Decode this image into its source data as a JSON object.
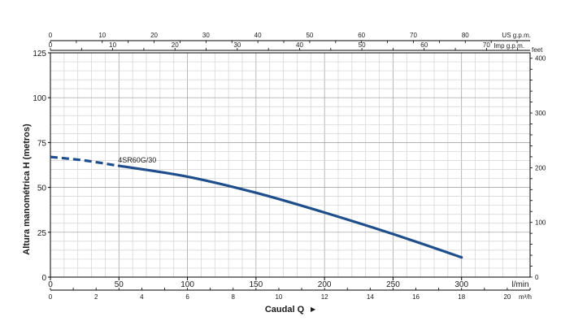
{
  "chart_data": {
    "type": "line",
    "ylabel": "Altura manométrica H (metros)",
    "xlabel": "Caudal Q",
    "ylim": [
      0,
      125
    ],
    "xlim": [
      0,
      350
    ],
    "grid": true,
    "x_unit": "l/min",
    "x_ticks": [
      0,
      50,
      100,
      150,
      200,
      250,
      300
    ],
    "y_ticks": [
      0,
      25,
      50,
      75,
      100,
      125
    ],
    "secondary_axes": {
      "top_us_gpm": {
        "unit": "US g.p.m.",
        "ticks": [
          0,
          10,
          20,
          30,
          40,
          50,
          60,
          70,
          80
        ]
      },
      "top_imp_gpm": {
        "unit": "Imp g.p.m.",
        "ticks": [
          0,
          10,
          20,
          30,
          40,
          50,
          60,
          70
        ]
      },
      "bottom_m3h": {
        "unit": "m³/h",
        "ticks": [
          0,
          2,
          4,
          6,
          8,
          10,
          12,
          14,
          16,
          18,
          20
        ]
      },
      "right_feet": {
        "unit": "feet",
        "ticks": [
          0,
          100,
          200,
          300,
          400
        ]
      }
    },
    "series": [
      {
        "name": "4SR60G/30",
        "color": "#1f4e8c",
        "dashed_until_x": 50,
        "x": [
          0,
          25,
          50,
          100,
          150,
          200,
          250,
          300
        ],
        "y": [
          67,
          65,
          62,
          56,
          47,
          36,
          24,
          11
        ]
      }
    ]
  }
}
